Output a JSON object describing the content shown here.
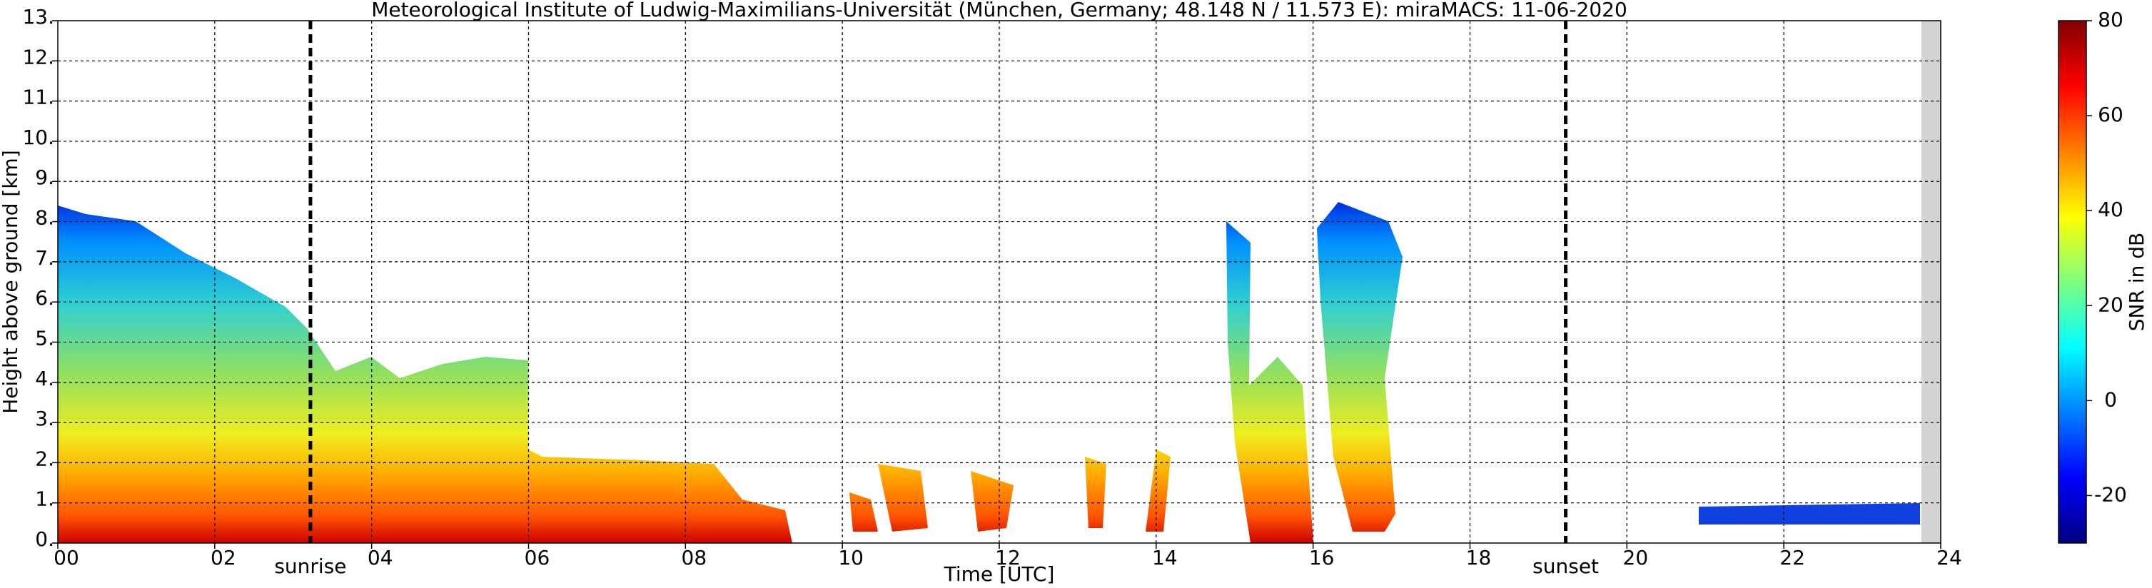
{
  "chart_data": {
    "type": "heatmap",
    "title": "Meteorological Institute of Ludwig-Maximilians-Universität (München, Germany; 48.148 N / 11.573 E):    miraMACS: 11-06-2020",
    "x_label": "Time [UTC]",
    "y_label": "Height above ground [km]",
    "xlim": [
      0,
      24
    ],
    "xticks": [
      {
        "value": 0,
        "label": "00"
      },
      {
        "value": 2,
        "label": "02"
      },
      {
        "value": 4,
        "label": "04"
      },
      {
        "value": 6,
        "label": "06"
      },
      {
        "value": 8,
        "label": "08"
      },
      {
        "value": 10,
        "label": "10"
      },
      {
        "value": 12,
        "label": "12"
      },
      {
        "value": 14,
        "label": "14"
      },
      {
        "value": 16,
        "label": "16"
      },
      {
        "value": 18,
        "label": "18"
      },
      {
        "value": 20,
        "label": "20"
      },
      {
        "value": 22,
        "label": "22"
      },
      {
        "value": 24,
        "label": "24"
      }
    ],
    "ylim": [
      0,
      13
    ],
    "yticks": [
      {
        "value": 0,
        "label": "0."
      },
      {
        "value": 1,
        "label": "1."
      },
      {
        "value": 2,
        "label": "2."
      },
      {
        "value": 3,
        "label": "3."
      },
      {
        "value": 4,
        "label": "4."
      },
      {
        "value": 5,
        "label": "5."
      },
      {
        "value": 6,
        "label": "6."
      },
      {
        "value": 7,
        "label": "7."
      },
      {
        "value": 8,
        "label": "8."
      },
      {
        "value": 9,
        "label": "9."
      },
      {
        "value": 10,
        "label": "10."
      },
      {
        "value": 11,
        "label": "11."
      },
      {
        "value": 12,
        "label": "12."
      },
      {
        "value": 13,
        "label": "13."
      }
    ],
    "grid": true,
    "colorbar": {
      "label": "SNR in dB",
      "colormap": "jet",
      "lim": [
        -30,
        80
      ],
      "ticks": [
        -20,
        0,
        20,
        40,
        60,
        80
      ]
    },
    "annotations": [
      {
        "label": "sunrise",
        "x": 3.22
      },
      {
        "label": "sunset",
        "x": 19.22
      }
    ]
  }
}
